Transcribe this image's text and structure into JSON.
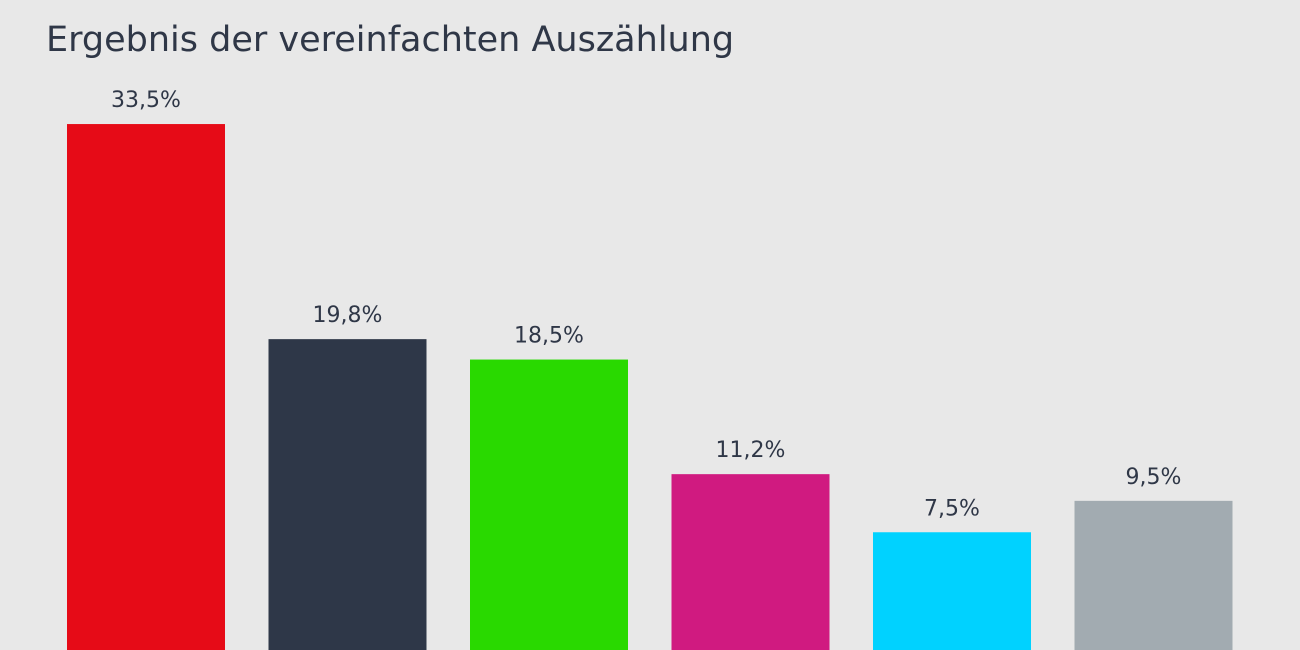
{
  "chart_data": {
    "type": "bar",
    "title": "Ergebnis der vereinfachten Auszählung",
    "values": [
      33.5,
      19.8,
      18.5,
      11.2,
      7.5,
      9.5
    ],
    "value_labels": [
      "33,5%",
      "19,8%",
      "18,5%",
      "11,2%",
      "7,5%",
      "9,5%"
    ],
    "colors": [
      "#e60b17",
      "#2e3748",
      "#29d900",
      "#d01a80",
      "#00d2ff",
      "#a2abb1"
    ],
    "xlabel": "",
    "ylabel": "",
    "grid": false,
    "legend": "none"
  }
}
